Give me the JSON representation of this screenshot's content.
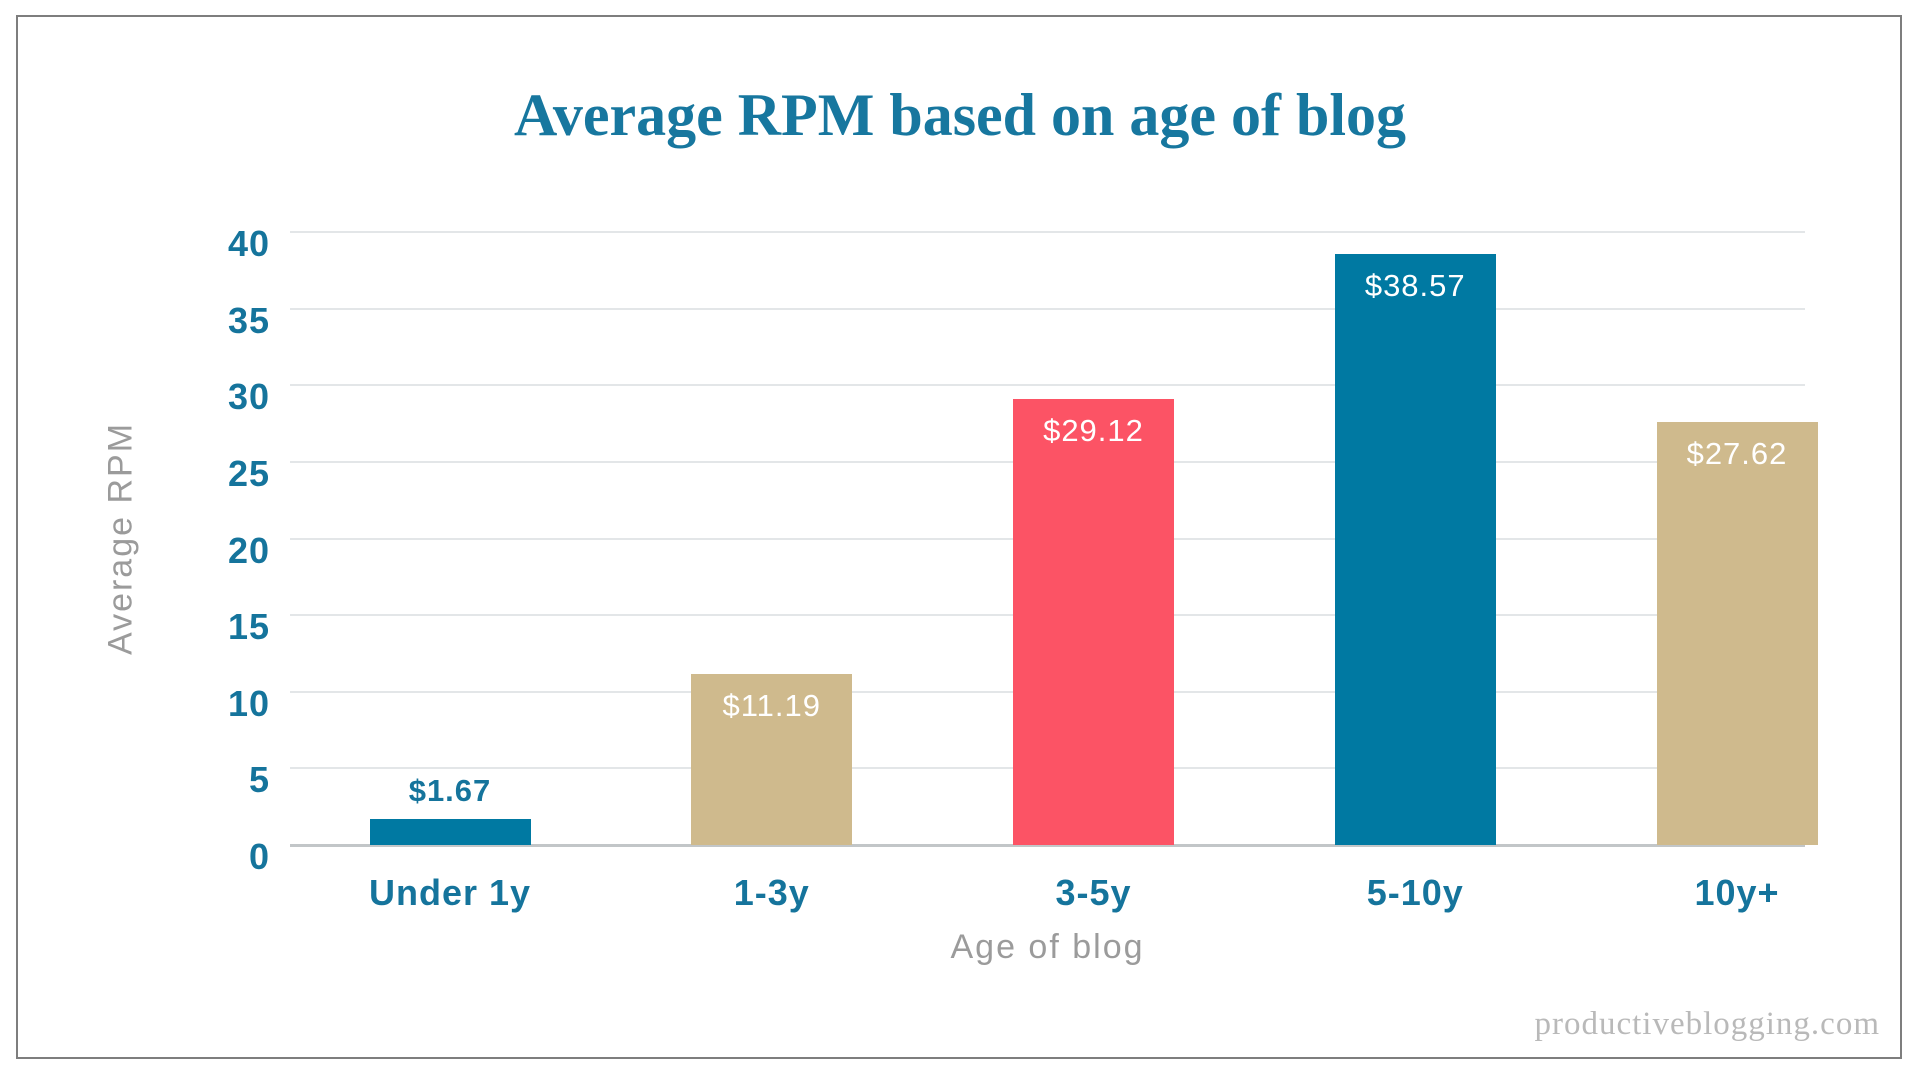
{
  "page": {
    "watermark": "productiveblogging.com"
  },
  "theme": {
    "bar_teal": "#0079a2",
    "bar_tan": "#cfba8d",
    "bar_pink": "#fc5365",
    "text_teal": "#15749c",
    "text_gray": "#9b9b9b",
    "watermark_gray": "#b9b9b9",
    "gridline_color": "#e3e6e8",
    "axis_line_color": "#c2c6c8",
    "frame_border_color": "#7e7e7e"
  },
  "chart_data": {
    "type": "bar",
    "title": "Average RPM based on age of blog",
    "xlabel": "Age of blog",
    "ylabel": "Average RPM",
    "categories": [
      "Under 1y",
      "1-3y",
      "3-5y",
      "5-10y",
      "10y+"
    ],
    "values": [
      1.67,
      11.19,
      29.12,
      38.57,
      27.62
    ],
    "value_labels": [
      "$1.67",
      "$11.19",
      "$29.12",
      "$38.57",
      "$27.62"
    ],
    "bar_colors": [
      "#0079a2",
      "#cfba8d",
      "#fc5365",
      "#0079a2",
      "#cfba8d"
    ],
    "value_label_inside": [
      false,
      true,
      true,
      true,
      true
    ],
    "ylim": [
      0,
      40
    ],
    "yticks": [
      0,
      5,
      10,
      15,
      20,
      25,
      30,
      35,
      40
    ],
    "grid": "horizontal",
    "legend": "none"
  }
}
